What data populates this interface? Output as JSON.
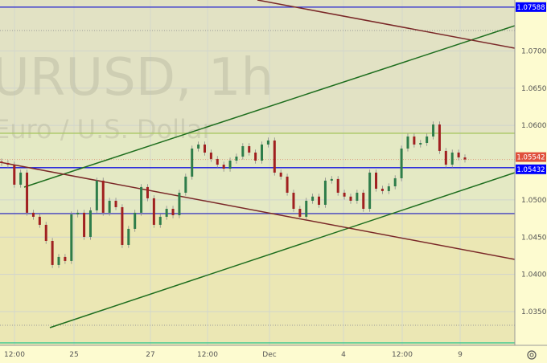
{
  "watermark": {
    "symbol": "URUSD, 1h",
    "description": "Euro / U.S. Dollar"
  },
  "chart_data": {
    "type": "candlestick",
    "ylim": [
      1.0305,
      1.078
    ],
    "y_ticks": [
      "1.07000",
      "1.06500",
      "1.06000",
      "1.05000",
      "1.04500",
      "1.04000",
      "1.03500"
    ],
    "x_ticks": [
      "12:00",
      "25",
      "27",
      "12:00",
      "Dec",
      "4",
      "12:00",
      "9"
    ],
    "closes": [
      1.05495,
      1.05473,
      1.05204,
      1.05366,
      1.04827,
      1.04773,
      1.04665,
      1.04449,
      1.04126,
      1.04234,
      1.0418,
      1.04805,
      1.04827,
      1.04503,
      1.04859,
      1.05258,
      1.04827,
      1.04988,
      1.04902,
      1.04395,
      1.04611,
      1.04827,
      1.05172,
      1.05021,
      1.04665,
      1.04773,
      1.0488,
      1.04794,
      1.05096,
      1.05312,
      1.05689,
      1.05743,
      1.05635,
      1.05549,
      1.05473,
      1.05419,
      1.05527,
      1.05581,
      1.05721,
      1.05635,
      1.05527,
      1.05743,
      1.05797,
      1.05366,
      1.05312,
      1.05096,
      1.0488,
      1.04773,
      1.04988,
      1.05044,
      1.04934,
      1.05258,
      1.0528,
      1.05096,
      1.05044,
      1.04988,
      1.05096,
      1.0488,
      1.05366,
      1.0515,
      1.05118,
      1.05182,
      1.0529,
      1.05689,
      1.05851,
      1.05743,
      1.05764,
      1.05851,
      1.06012,
      1.05657,
      1.05473,
      1.05635,
      1.0557,
      1.05542
    ],
    "price_labels": [
      {
        "value": "1.07588",
        "color": "#0000ff"
      },
      {
        "value": "1.05542",
        "color": "#e0503c"
      },
      {
        "value": "1.05432",
        "color": "#0000ff"
      }
    ],
    "horizontal_levels": [
      {
        "price": 1.07588,
        "color": "#2020d0"
      },
      {
        "price": 1.05432,
        "color": "#1515e0"
      },
      {
        "price": 1.04816,
        "color": "#4040c0"
      },
      {
        "price": 1.05894,
        "color": "#a8c860"
      },
      {
        "price": 1.0308,
        "color": "#40c890"
      }
    ],
    "colors": {
      "up": "#2e7d4a",
      "down": "#a02020",
      "channel": "#1e6e1e",
      "trend": "#7a2828"
    }
  }
}
